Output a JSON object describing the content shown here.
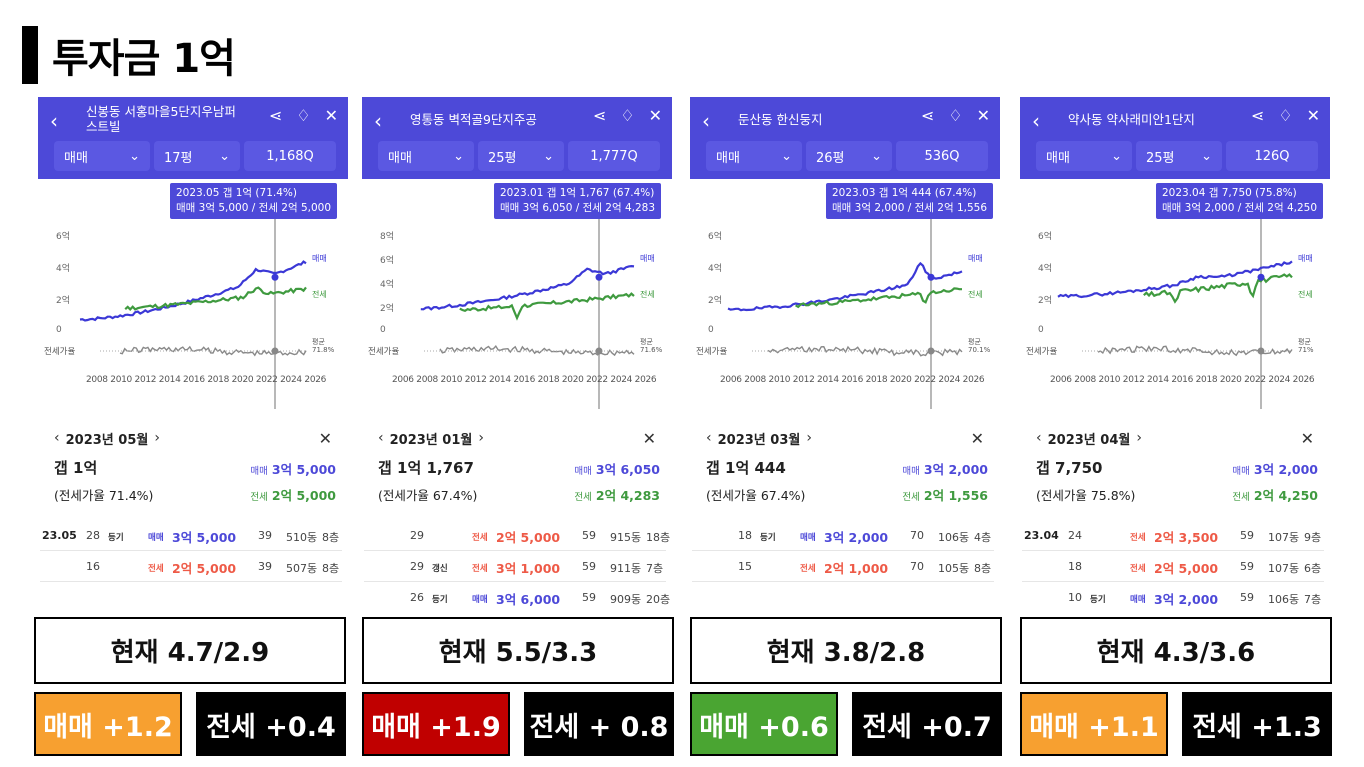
{
  "page": {
    "title": "투자금 1억"
  },
  "panels": [
    {
      "name": "신봉동 서홍마을5단지우남퍼스트빌",
      "filters": {
        "type": "매매",
        "size": "17평",
        "count": "1,168"
      },
      "tooltip": {
        "line1": "2023.05  갭 1억 (71.4%)",
        "line2": "매매 3억 5,000 / 전세 2억 5,000"
      },
      "y_labels": [
        "6억",
        "4억",
        "2억",
        "0"
      ],
      "series_labels": {
        "trade": "매매",
        "jeonse": "전세"
      },
      "ratio_label": "전세가율",
      "avg_label": "평균",
      "avg_value": "71.8%",
      "x_labels": "2008 2010 2012 2014 2016 2018 2020 2022 2024 2026",
      "date": "2023년 05월",
      "gap": "갭 1억",
      "ratio": "(전세가율 71.4%)",
      "trade_kw": "매매",
      "trade_price": "3억 5,000",
      "jeonse_kw": "전세",
      "jeonse_price": "2억 5,000",
      "rows": [
        {
          "date": "23.05",
          "day": "28",
          "tag": "등기",
          "kind": "매매",
          "price": "3억 5,000",
          "area": "39",
          "dong": "510동",
          "floor": "8층"
        },
        {
          "date": "",
          "day": "16",
          "tag": "",
          "kind": "전세",
          "price": "2억 5,000",
          "area": "39",
          "dong": "507동",
          "floor": "8층"
        }
      ]
    },
    {
      "name": "영통동 벽적골9단지주공",
      "filters": {
        "type": "매매",
        "size": "25평",
        "count": "1,777"
      },
      "tooltip": {
        "line1": "2023.01  갭 1억 1,767 (67.4%)",
        "line2": "매매 3억 6,050 / 전세 2억 4,283"
      },
      "y_labels": [
        "8억",
        "6억",
        "4억",
        "2억",
        "0"
      ],
      "series_labels": {
        "trade": "매매",
        "jeonse": "전세"
      },
      "ratio_label": "전세가율",
      "avg_label": "평균",
      "avg_value": "71.6%",
      "x_labels": "2006 2008 2010 2012 2014 2016 2018 2020 2022 2024 2026",
      "date": "2023년 01월",
      "gap": "갭 1억 1,767",
      "ratio": "(전세가율 67.4%)",
      "trade_kw": "매매",
      "trade_price": "3억 6,050",
      "jeonse_kw": "전세",
      "jeonse_price": "2억 4,283",
      "rows": [
        {
          "date": "",
          "day": "29",
          "tag": "",
          "kind": "전세",
          "price": "2억 5,000",
          "area": "59",
          "dong": "915동",
          "floor": "18층"
        },
        {
          "date": "",
          "day": "29",
          "tag": "갱신",
          "kind": "전세",
          "price": "3억 1,000",
          "area": "59",
          "dong": "911동",
          "floor": "7층"
        },
        {
          "date": "",
          "day": "26",
          "tag": "등기",
          "kind": "매매",
          "price": "3억 6,000",
          "area": "59",
          "dong": "909동",
          "floor": "20층"
        }
      ]
    },
    {
      "name": "둔산동 한신둥지",
      "filters": {
        "type": "매매",
        "size": "26평",
        "count": "536"
      },
      "tooltip": {
        "line1": "2023.03  갭 1억 444 (67.4%)",
        "line2": "매매 3억 2,000 / 전세 2억 1,556"
      },
      "y_labels": [
        "6억",
        "4억",
        "2억",
        "0"
      ],
      "series_labels": {
        "trade": "매매",
        "jeonse": "전세"
      },
      "ratio_label": "전세가율",
      "avg_label": "평균",
      "avg_value": "70.1%",
      "x_labels": "2006 2008 2010 2012 2014 2016 2018 2020 2022 2024 2026",
      "date": "2023년 03월",
      "gap": "갭 1억 444",
      "ratio": "(전세가율 67.4%)",
      "trade_kw": "매매",
      "trade_price": "3억 2,000",
      "jeonse_kw": "전세",
      "jeonse_price": "2억 1,556",
      "rows": [
        {
          "date": "",
          "day": "18",
          "tag": "등기",
          "kind": "매매",
          "price": "3억 2,000",
          "area": "70",
          "dong": "106동",
          "floor": "4층"
        },
        {
          "date": "",
          "day": "15",
          "tag": "",
          "kind": "전세",
          "price": "2억 1,000",
          "area": "70",
          "dong": "105동",
          "floor": "8층"
        }
      ]
    },
    {
      "name": "약사동 약사래미안1단지",
      "filters": {
        "type": "매매",
        "size": "25평",
        "count": "126"
      },
      "tooltip": {
        "line1": "2023.04  갭 7,750 (75.8%)",
        "line2": "매매 3억 2,000 / 전세 2억 4,250"
      },
      "y_labels": [
        "6억",
        "4억",
        "2억",
        "0"
      ],
      "series_labels": {
        "trade": "매매",
        "jeonse": "전세"
      },
      "ratio_label": "전세가율",
      "avg_label": "평균",
      "avg_value": "71%",
      "x_labels": "2006 2008 2010 2012 2014 2016 2018 2020 2022 2024 2026",
      "date": "2023년 04월",
      "gap": "갭 7,750",
      "ratio": "(전세가율 75.8%)",
      "trade_kw": "매매",
      "trade_price": "3억 2,000",
      "jeonse_kw": "전세",
      "jeonse_price": "2억 4,250",
      "rows": [
        {
          "date": "23.04",
          "day": "24",
          "tag": "",
          "kind": "전세",
          "price": "2억 3,500",
          "area": "59",
          "dong": "107동",
          "floor": "9층"
        },
        {
          "date": "",
          "day": "18",
          "tag": "",
          "kind": "전세",
          "price": "2억 5,000",
          "area": "59",
          "dong": "107동",
          "floor": "6층"
        },
        {
          "date": "",
          "day": "10",
          "tag": "등기",
          "kind": "매매",
          "price": "3억 2,000",
          "area": "59",
          "dong": "106동",
          "floor": "7층"
        }
      ]
    }
  ],
  "summary": [
    {
      "now": "현재 4.7/2.9",
      "trade": "매매 +1.2",
      "trade_color": "#f7a030",
      "jeonse": "전세 +0.4"
    },
    {
      "now": "현재 5.5/3.3",
      "trade": "매매 +1.9",
      "trade_color": "#c00000",
      "jeonse": "전세 + 0.8"
    },
    {
      "now": "현재 3.8/2.8",
      "trade": "매매 +0.6",
      "trade_color": "#4aa532",
      "jeonse": "전세 +0.7"
    },
    {
      "now": "현재 4.3/3.6",
      "trade": "매매 +1.1",
      "trade_color": "#f7a030",
      "jeonse": "전세 +1.3"
    }
  ],
  "colors": {
    "header": "#4d49d8",
    "trade_line": "#3b38d6",
    "jeonse_line": "#3f9a3f",
    "jeonse_price": "#ee5a47"
  },
  "icons": [
    "chevron-left-icon",
    "share-icon",
    "bell-icon",
    "close-icon",
    "chevron-down-icon",
    "search-icon"
  ]
}
